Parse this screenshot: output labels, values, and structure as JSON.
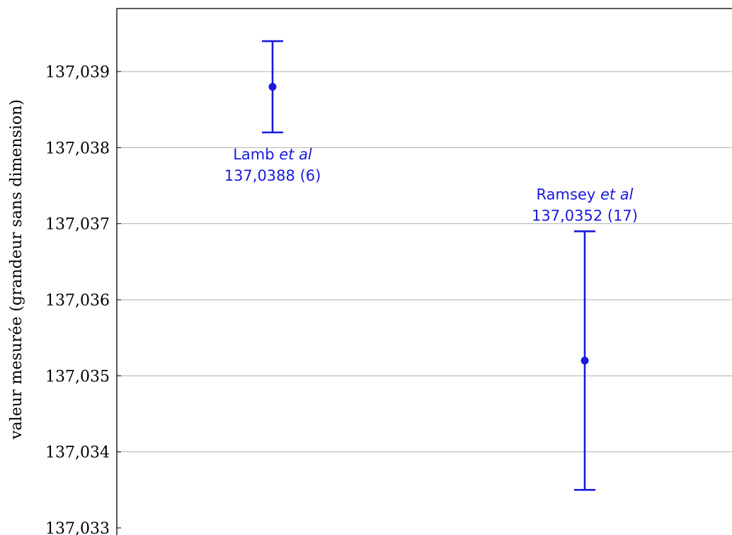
{
  "chart_data": {
    "type": "scatter",
    "ylabel": "valeur mesurée (grandeur sans dimension)",
    "xlabel": "",
    "ylim": [
      137.033,
      137.0398
    ],
    "y_ticks": [
      137.033,
      137.034,
      137.035,
      137.036,
      137.037,
      137.038,
      137.039
    ],
    "y_tick_labels": [
      "137,033",
      "137,034",
      "137,035",
      "137,036",
      "137,037",
      "137,038",
      "137,039"
    ],
    "grid": "horizontal",
    "colors": {
      "series": "#1a1adc",
      "grid": "#b0b0b0",
      "axis": "#000000"
    },
    "points": [
      {
        "name": "Lamb",
        "suffix": "et al",
        "value": 137.0388,
        "error": 0.0006,
        "value_label": "137,0388 (6)",
        "label_position": "below"
      },
      {
        "name": "Ramsey",
        "suffix": "et al",
        "value": 137.0352,
        "error": 0.0017,
        "value_label": "137,0352 (17)",
        "label_position": "above"
      }
    ]
  }
}
